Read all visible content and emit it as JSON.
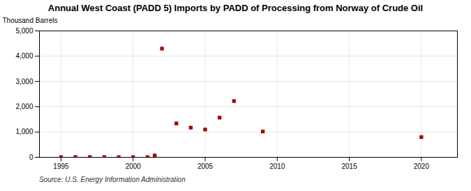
{
  "chart_data": {
    "type": "scatter",
    "title": "Annual West Coast (PADD 5) Imports by PADD of Processing from Norway of Crude Oil",
    "ylabel": "Thousand Barrels",
    "source": "Source: U.S. Energy Information Administration",
    "x": [
      1995,
      1996,
      1997,
      1998,
      1999,
      2000,
      2001,
      2001.5,
      2002,
      2003,
      2004,
      2005,
      2006,
      2007,
      2009,
      2020
    ],
    "values": [
      5,
      10,
      10,
      8,
      6,
      5,
      5,
      75,
      4300,
      1340,
      1175,
      1100,
      1570,
      2225,
      1020,
      800
    ],
    "color": "#aa0000",
    "marker": "square",
    "xlim": [
      1993.5,
      2022.5
    ],
    "ylim": [
      0,
      5000
    ],
    "xticks": [
      1995,
      2000,
      2005,
      2010,
      2015,
      2020
    ],
    "yticks": [
      0,
      {
        "value": 1000,
        "label": "1,000"
      },
      {
        "value": 2000,
        "label": "2,000"
      },
      {
        "value": 3000,
        "label": "3,000"
      },
      {
        "value": 4000,
        "label": "4,000"
      },
      {
        "value": 5000,
        "label": "5,000"
      }
    ],
    "grid": true
  }
}
